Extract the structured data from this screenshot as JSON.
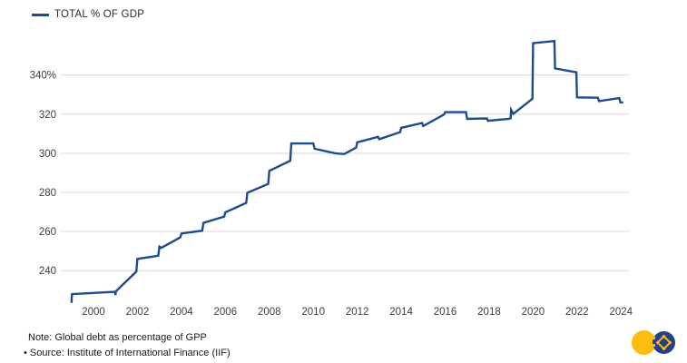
{
  "legend": {
    "label": "TOTAL % OF GDP"
  },
  "chart_data": {
    "type": "line",
    "style": "step-like polyline",
    "title": "TOTAL % OF GDP",
    "xlabel": "",
    "ylabel": "",
    "xlim": [
      1998.6,
      2024.4
    ],
    "ylim": [
      220,
      362
    ],
    "grid": "horizontal",
    "legend_position": "top-left",
    "x_ticks": [
      2000,
      2002,
      2004,
      2006,
      2008,
      2010,
      2012,
      2014,
      2016,
      2018,
      2020,
      2022,
      2024
    ],
    "y_ticks": [
      240,
      260,
      280,
      300,
      320,
      340
    ],
    "y_tick_labels": [
      "240",
      "260",
      "280",
      "300",
      "320",
      "340%"
    ],
    "line_color": "#1d4b8e",
    "gridline_color": "#d9d9d9",
    "series": [
      {
        "name": "TOTAL % OF GDP",
        "points": [
          [
            1999.0,
            223.5
          ],
          [
            1999.02,
            228.0
          ],
          [
            2000.0,
            228.6
          ],
          [
            2000.98,
            229.2
          ],
          [
            2001.0,
            227.5
          ],
          [
            2001.02,
            229.4
          ],
          [
            2001.95,
            239.5
          ],
          [
            2002.0,
            246.0
          ],
          [
            2002.95,
            247.6
          ],
          [
            2003.0,
            252.3
          ],
          [
            2003.08,
            251.6
          ],
          [
            2003.95,
            257.0
          ],
          [
            2004.0,
            259.0
          ],
          [
            2004.95,
            260.4
          ],
          [
            2005.0,
            264.4
          ],
          [
            2005.95,
            267.6
          ],
          [
            2006.0,
            269.8
          ],
          [
            2006.95,
            274.6
          ],
          [
            2007.0,
            279.8
          ],
          [
            2007.95,
            284.3
          ],
          [
            2008.0,
            291.0
          ],
          [
            2008.95,
            296.2
          ],
          [
            2009.0,
            305.0
          ],
          [
            2010.0,
            305.0
          ],
          [
            2010.06,
            302.3
          ],
          [
            2011.0,
            300.0
          ],
          [
            2011.4,
            299.6
          ],
          [
            2011.95,
            302.9
          ],
          [
            2012.0,
            305.6
          ],
          [
            2012.95,
            308.4
          ],
          [
            2013.0,
            307.2
          ],
          [
            2013.95,
            310.8
          ],
          [
            2014.0,
            313.0
          ],
          [
            2014.95,
            315.5
          ],
          [
            2015.0,
            313.9
          ],
          [
            2015.95,
            319.8
          ],
          [
            2016.0,
            321.0
          ],
          [
            2016.95,
            321.0
          ],
          [
            2017.0,
            317.6
          ],
          [
            2017.9,
            317.8
          ],
          [
            2017.95,
            316.6
          ],
          [
            2018.9,
            317.6
          ],
          [
            2018.98,
            317.9
          ],
          [
            2019.0,
            322.2
          ],
          [
            2019.1,
            320.2
          ],
          [
            2019.97,
            327.9
          ],
          [
            2020.0,
            356.3
          ],
          [
            2020.97,
            357.4
          ],
          [
            2021.0,
            343.4
          ],
          [
            2021.97,
            341.4
          ],
          [
            2022.0,
            328.6
          ],
          [
            2022.95,
            328.4
          ],
          [
            2023.0,
            326.7
          ],
          [
            2023.92,
            328.2
          ],
          [
            2023.97,
            326.1
          ],
          [
            2024.1,
            326.0
          ]
        ]
      }
    ]
  },
  "notes": {
    "note": "Note: Global debt as percentage of GPP",
    "source": "• Source: Institute of International Finance (IIF)"
  },
  "logo": {
    "name": "brand-logo",
    "yellow": "#fbbd0f",
    "blue": "#21418f"
  }
}
